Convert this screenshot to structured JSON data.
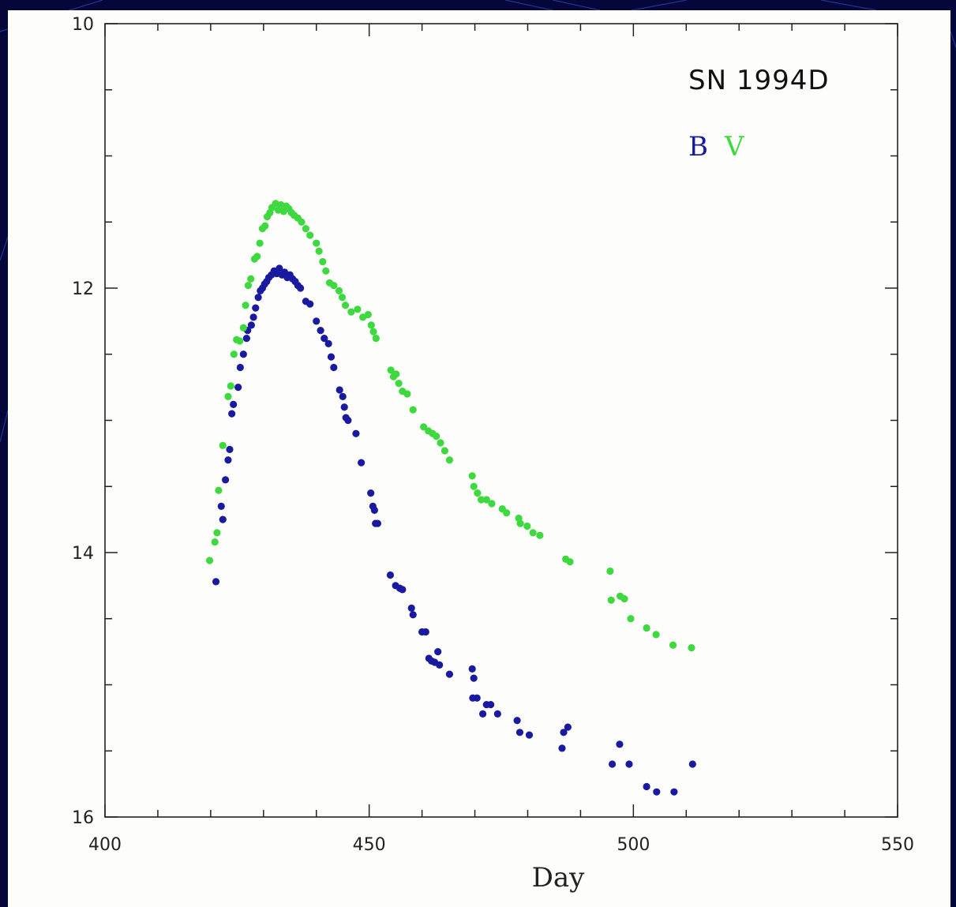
{
  "colors": {
    "background": "#05063a",
    "panel": "#fdfdfb",
    "series_b": "#1a1aa0",
    "series_v": "#3ed93e",
    "axis": "#222222"
  },
  "chart_data": {
    "type": "scatter",
    "title": "SN 1994D",
    "xlabel": "Day",
    "ylabel": "",
    "xlim": [
      400,
      550
    ],
    "ylim": [
      16,
      10
    ],
    "y_inverted": true,
    "xticks": [
      400,
      450,
      500,
      550
    ],
    "xtick_labels": [
      "400",
      "450",
      "500",
      "550"
    ],
    "yticks": [
      10,
      12,
      14,
      16
    ],
    "ytick_labels": [
      "10",
      "12",
      "14",
      "16"
    ],
    "legend_placement": "top-right",
    "grid": false,
    "series": [
      {
        "name": "B",
        "color": "#1a1aa0",
        "points": [
          [
            421,
            14.22
          ],
          [
            422,
            13.65
          ],
          [
            422.3,
            13.75
          ],
          [
            422.8,
            13.45
          ],
          [
            423.3,
            13.3
          ],
          [
            423.6,
            13.22
          ],
          [
            424,
            12.95
          ],
          [
            424.3,
            12.88
          ],
          [
            425.2,
            12.75
          ],
          [
            425.6,
            12.6
          ],
          [
            426.2,
            12.5
          ],
          [
            426.8,
            12.38
          ],
          [
            427,
            12.32
          ],
          [
            427.7,
            12.28
          ],
          [
            428.1,
            12.22
          ],
          [
            428.5,
            12.15
          ],
          [
            429,
            12.07
          ],
          [
            429.4,
            12.02
          ],
          [
            429.8,
            12.0
          ],
          [
            430.2,
            11.97
          ],
          [
            430.6,
            11.95
          ],
          [
            431,
            11.92
          ],
          [
            431.5,
            11.9
          ],
          [
            432,
            11.87
          ],
          [
            432.5,
            11.89
          ],
          [
            433,
            11.85
          ],
          [
            433.5,
            11.9
          ],
          [
            434,
            11.88
          ],
          [
            434.5,
            11.92
          ],
          [
            435,
            11.9
          ],
          [
            435.5,
            11.93
          ],
          [
            436,
            11.95
          ],
          [
            436.5,
            11.98
          ],
          [
            437,
            12.0
          ],
          [
            438,
            12.1
          ],
          [
            438.8,
            12.12
          ],
          [
            440,
            12.25
          ],
          [
            440.8,
            12.32
          ],
          [
            441.5,
            12.38
          ],
          [
            442.3,
            12.42
          ],
          [
            442.8,
            12.52
          ],
          [
            443.3,
            12.6
          ],
          [
            444.4,
            12.77
          ],
          [
            445,
            12.82
          ],
          [
            445.3,
            12.9
          ],
          [
            445.6,
            12.98
          ],
          [
            446,
            13.0
          ],
          [
            447.5,
            13.1
          ],
          [
            448.5,
            13.32
          ],
          [
            450.3,
            13.55
          ],
          [
            450.7,
            13.65
          ],
          [
            451,
            13.68
          ],
          [
            451.2,
            13.78
          ],
          [
            451.6,
            13.78
          ],
          [
            454,
            14.17
          ],
          [
            455,
            14.25
          ],
          [
            455.8,
            14.27
          ],
          [
            456.3,
            14.28
          ],
          [
            458,
            14.42
          ],
          [
            458.3,
            14.47
          ],
          [
            460,
            14.6
          ],
          [
            460.7,
            14.6
          ],
          [
            461.3,
            14.8
          ],
          [
            461.8,
            14.82
          ],
          [
            462.4,
            14.83
          ],
          [
            463,
            14.75
          ],
          [
            463.3,
            14.85
          ],
          [
            465.2,
            14.92
          ],
          [
            469.5,
            14.88
          ],
          [
            469.8,
            14.95
          ],
          [
            469.6,
            15.1
          ],
          [
            470.4,
            15.1
          ],
          [
            471.5,
            15.22
          ],
          [
            472.2,
            15.15
          ],
          [
            473,
            15.15
          ],
          [
            474.3,
            15.22
          ],
          [
            478,
            15.27
          ],
          [
            478.5,
            15.36
          ],
          [
            480.3,
            15.38
          ],
          [
            486.5,
            15.48
          ],
          [
            486.8,
            15.36
          ],
          [
            487.6,
            15.32
          ],
          [
            496,
            15.6
          ],
          [
            497.4,
            15.45
          ],
          [
            499.2,
            15.6
          ],
          [
            502.5,
            15.77
          ],
          [
            504.4,
            15.81
          ],
          [
            507.7,
            15.81
          ],
          [
            511.2,
            15.6
          ]
        ]
      },
      {
        "name": "V",
        "color": "#3ed93e",
        "points": [
          [
            419.8,
            14.06
          ],
          [
            420.8,
            13.92
          ],
          [
            421.2,
            13.85
          ],
          [
            421.5,
            13.53
          ],
          [
            422.3,
            13.19
          ],
          [
            423.3,
            12.82
          ],
          [
            423.8,
            12.74
          ],
          [
            424.4,
            12.5
          ],
          [
            424.9,
            12.39
          ],
          [
            425.5,
            12.4
          ],
          [
            426.2,
            12.3
          ],
          [
            426.6,
            12.13
          ],
          [
            427.1,
            11.98
          ],
          [
            427.6,
            11.93
          ],
          [
            428.3,
            11.78
          ],
          [
            428.8,
            11.76
          ],
          [
            429.3,
            11.66
          ],
          [
            429.8,
            11.55
          ],
          [
            430.3,
            11.53
          ],
          [
            430.7,
            11.46
          ],
          [
            431.2,
            11.43
          ],
          [
            431.6,
            11.39
          ],
          [
            432.3,
            11.36
          ],
          [
            432.8,
            11.41
          ],
          [
            433.3,
            11.37
          ],
          [
            433.8,
            11.42
          ],
          [
            434.3,
            11.38
          ],
          [
            434.8,
            11.4
          ],
          [
            435.3,
            11.43
          ],
          [
            435.8,
            11.45
          ],
          [
            436.5,
            11.47
          ],
          [
            437.2,
            11.5
          ],
          [
            438,
            11.55
          ],
          [
            438.8,
            11.6
          ],
          [
            440,
            11.66
          ],
          [
            440.5,
            11.72
          ],
          [
            441.2,
            11.8
          ],
          [
            441.8,
            11.87
          ],
          [
            442.5,
            11.96
          ],
          [
            443.3,
            11.98
          ],
          [
            444.3,
            12.02
          ],
          [
            444.9,
            12.07
          ],
          [
            445.5,
            12.13
          ],
          [
            446.6,
            12.18
          ],
          [
            447.8,
            12.16
          ],
          [
            448.8,
            12.22
          ],
          [
            449.8,
            12.2
          ],
          [
            450.4,
            12.28
          ],
          [
            450.8,
            12.33
          ],
          [
            451.3,
            12.38
          ],
          [
            454.1,
            12.62
          ],
          [
            454.6,
            12.67
          ],
          [
            455.1,
            12.65
          ],
          [
            455.6,
            12.72
          ],
          [
            456.3,
            12.78
          ],
          [
            457.2,
            12.8
          ],
          [
            458.3,
            12.92
          ],
          [
            460.3,
            13.05
          ],
          [
            461.2,
            13.08
          ],
          [
            462,
            13.1
          ],
          [
            462.7,
            13.12
          ],
          [
            463.5,
            13.17
          ],
          [
            464.3,
            13.23
          ],
          [
            465.2,
            13.3
          ],
          [
            469.5,
            13.42
          ],
          [
            469.8,
            13.5
          ],
          [
            470.5,
            13.55
          ],
          [
            471.2,
            13.6
          ],
          [
            472.2,
            13.6
          ],
          [
            473.2,
            13.63
          ],
          [
            475.2,
            13.67
          ],
          [
            476,
            13.7
          ],
          [
            478.3,
            13.74
          ],
          [
            478.6,
            13.78
          ],
          [
            479.9,
            13.8
          ],
          [
            481,
            13.85
          ],
          [
            482.3,
            13.87
          ],
          [
            487.2,
            14.05
          ],
          [
            488,
            14.07
          ],
          [
            495.6,
            14.14
          ],
          [
            495.8,
            14.36
          ],
          [
            497.5,
            14.33
          ],
          [
            498.3,
            14.35
          ],
          [
            499.5,
            14.5
          ],
          [
            502.5,
            14.57
          ],
          [
            504.3,
            14.62
          ],
          [
            507.5,
            14.7
          ],
          [
            511,
            14.72
          ]
        ]
      }
    ]
  }
}
